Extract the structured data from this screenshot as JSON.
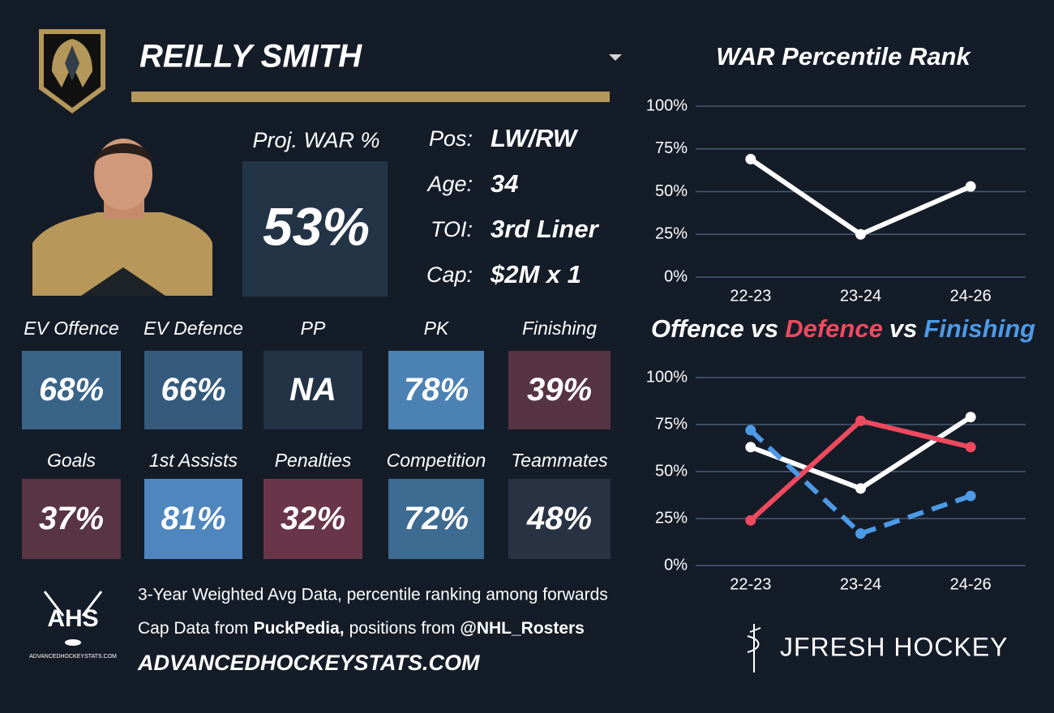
{
  "header": {
    "player_name": "REILLY SMITH"
  },
  "proj_war": {
    "label": "Proj. WAR %",
    "value": "53%"
  },
  "info": [
    {
      "label": "Pos:",
      "value": "LW/RW"
    },
    {
      "label": "Age:",
      "value": "34"
    },
    {
      "label": "TOI:",
      "value": "3rd Liner"
    },
    {
      "label": "Cap:",
      "value": "$2M x 1"
    }
  ],
  "stat_tiles": [
    {
      "label": "EV Offence",
      "value": "68%",
      "color": "#3a6388"
    },
    {
      "label": "EV Defence",
      "value": "66%",
      "color": "#355a7b"
    },
    {
      "label": "PP",
      "value": "NA",
      "color": "#233245"
    },
    {
      "label": "PK",
      "value": "78%",
      "color": "#4c82b3"
    },
    {
      "label": "Finishing",
      "value": "39%",
      "color": "#563444"
    },
    {
      "label": "Goals",
      "value": "37%",
      "color": "#583444"
    },
    {
      "label": "1st Assists",
      "value": "81%",
      "color": "#4f86bd"
    },
    {
      "label": "Penalties",
      "value": "32%",
      "color": "#683648"
    },
    {
      "label": "Competition",
      "value": "72%",
      "color": "#3e6b92"
    },
    {
      "label": "Teammates",
      "value": "48%",
      "color": "#293243"
    }
  ],
  "footer": {
    "note": "3-Year Weighted Avg Data, percentile ranking among forwards",
    "credits": [
      "Cap Data from",
      "PuckPedia,",
      "positions from",
      "@NHL_Rosters"
    ],
    "site": "ADVANCEDHOCKEYSTATS.COM",
    "ahs_logo": "AHS",
    "ahs_logo_caption": "ADVANCEDHOCKEYSTATS.COM",
    "brand": "JFRESH HOCKEY"
  },
  "chart_data": [
    {
      "type": "line",
      "title": "WAR Percentile Rank",
      "categories": [
        "22-23",
        "23-24",
        "24-26"
      ],
      "values": [
        69,
        25,
        53
      ],
      "color": "#ffffff",
      "ylim": [
        0,
        100
      ],
      "yticks": [
        {
          "value": 0,
          "label": "0%"
        },
        {
          "value": 25,
          "label": "25%"
        },
        {
          "value": 50,
          "label": "50%"
        },
        {
          "value": 75,
          "label": "75%"
        },
        {
          "value": 100,
          "label": "100%"
        }
      ],
      "grid": true
    },
    {
      "type": "line",
      "title_joiner": "vs",
      "categories": [
        "22-23",
        "23-24",
        "24-26"
      ],
      "series": [
        {
          "name": "Offence",
          "color": "#ffffff",
          "values": [
            63,
            41,
            79
          ]
        },
        {
          "name": "Defence",
          "color": "#ee4a5f",
          "values": [
            24,
            77,
            63
          ]
        },
        {
          "name": "Finishing",
          "color": "#4d9ae6",
          "values": [
            72,
            17,
            37
          ],
          "line_style": "dashed"
        }
      ],
      "ylim": [
        0,
        100
      ],
      "yticks": [
        {
          "value": 0,
          "label": "0%"
        },
        {
          "value": 25,
          "label": "25%"
        },
        {
          "value": 50,
          "label": "50%"
        },
        {
          "value": 75,
          "label": "75%"
        },
        {
          "value": 100,
          "label": "100%"
        }
      ],
      "grid": true
    }
  ]
}
